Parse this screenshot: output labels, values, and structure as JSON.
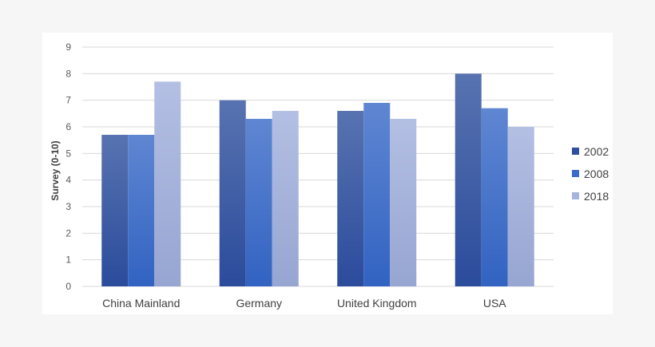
{
  "chart_data": {
    "type": "bar",
    "ylabel": "Survey (0-10)",
    "xlabel": "",
    "ylim": [
      0,
      9
    ],
    "yticks": [
      0,
      1,
      2,
      3,
      4,
      5,
      6,
      7,
      8,
      9
    ],
    "grid": true,
    "legend_position": "right",
    "categories": [
      "China Mainland",
      "Germany",
      "United Kingdom",
      "USA"
    ],
    "series": [
      {
        "name": "2002",
        "values": [
          5.7,
          7.0,
          6.6,
          8.0
        ]
      },
      {
        "name": "2008",
        "values": [
          5.7,
          6.3,
          6.9,
          6.7
        ]
      },
      {
        "name": "2018",
        "values": [
          7.7,
          6.6,
          6.3,
          6.0
        ]
      }
    ]
  },
  "colors": {
    "2002": {
      "top": "#5873b0",
      "bottom": "#2b4b9c"
    },
    "2008": {
      "top": "#5f86d2",
      "bottom": "#3263c2"
    },
    "2018": {
      "top": "#b3bfe3",
      "bottom": "#97a5d2"
    },
    "legend": [
      "#2f4f9f",
      "#3b6bcc",
      "#a6b4de"
    ],
    "grid": "#d9d9d9"
  }
}
